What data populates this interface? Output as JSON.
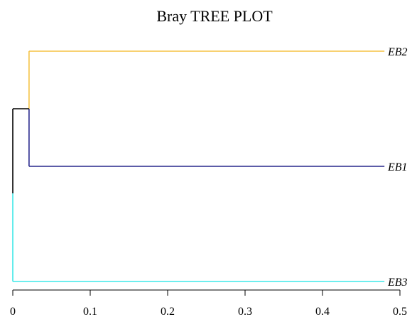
{
  "chart_data": {
    "type": "dendrogram",
    "title": "Bray TREE PLOT",
    "xlabel": "",
    "ylabel": "",
    "xlim": [
      0,
      0.5
    ],
    "xticks": [
      0,
      0.1,
      0.2,
      0.3,
      0.4,
      0.5
    ],
    "xtick_labels": [
      "0",
      "0.1",
      "0.2",
      "0.3",
      "0.4",
      "0.5"
    ],
    "leaves": [
      {
        "name": "EB2",
        "color": "#F5C242"
      },
      {
        "name": "EB1",
        "color": "#26268C"
      },
      {
        "name": "EB3",
        "color": "#3DE8E8"
      }
    ],
    "merges": [
      {
        "members": [
          "EB2",
          "EB1"
        ],
        "height": 0.021,
        "color": "#F5C242"
      },
      {
        "members": [
          "EB2",
          "EB1",
          "EB3"
        ],
        "height": 0.0,
        "color": "#000000"
      }
    ],
    "leaf_extent": 0.48
  }
}
